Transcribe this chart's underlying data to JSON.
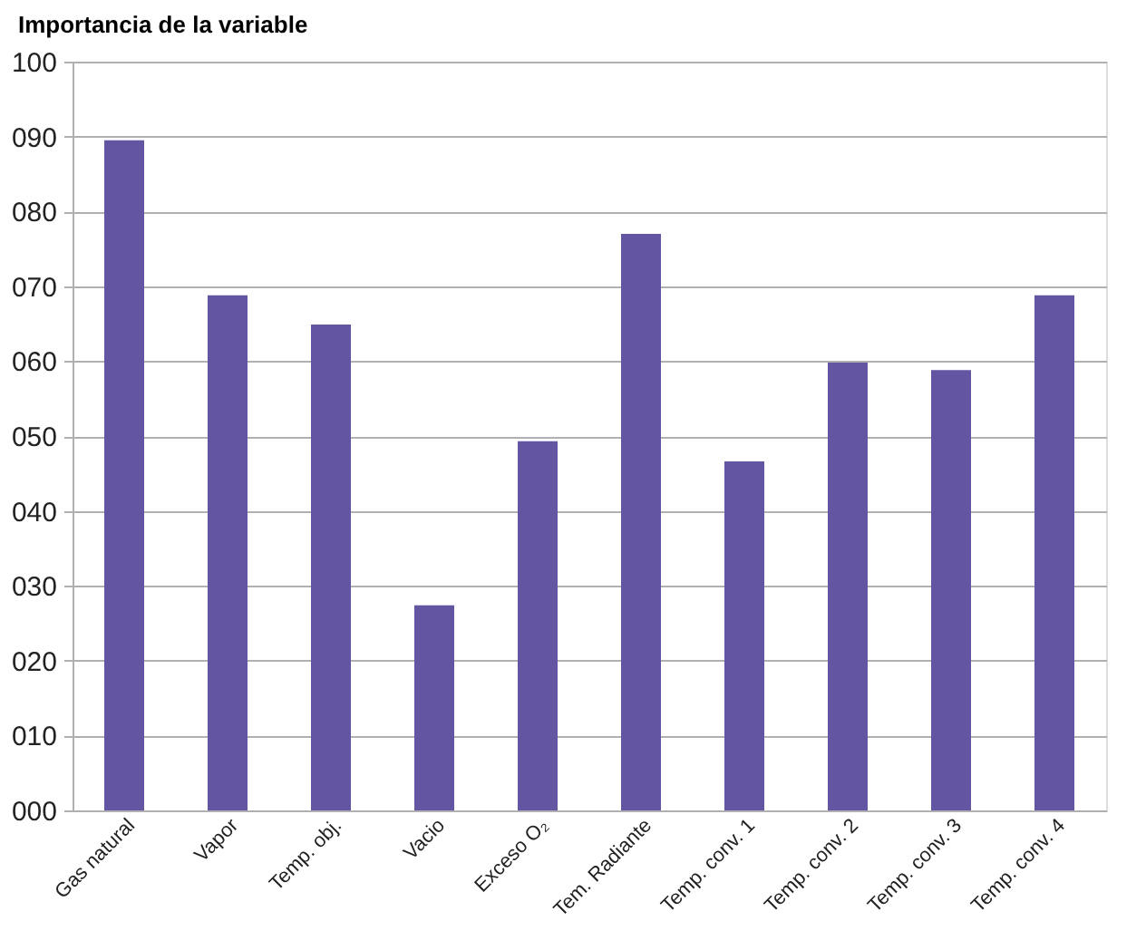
{
  "chart_data": {
    "type": "bar",
    "title": "Importancia de la variable",
    "categories": [
      "Gas natural",
      "Vapor",
      "Temp. obj.",
      "Vacio",
      "Exceso O₂",
      "Tem. Radiante",
      "Temp. conv. 1",
      "Temp. conv. 2",
      "Temp. conv. 3",
      "Temp. conv. 4"
    ],
    "values": [
      89.5,
      68.8,
      64.9,
      27.4,
      49.3,
      77,
      46.6,
      59.8,
      58.8,
      68.8
    ],
    "color": "#6355a2",
    "ylim": [
      0,
      100
    ],
    "yticks": [
      {
        "value": 0,
        "label": "000"
      },
      {
        "value": 10,
        "label": "010"
      },
      {
        "value": 20,
        "label": "020"
      },
      {
        "value": 30,
        "label": "030"
      },
      {
        "value": 40,
        "label": "040"
      },
      {
        "value": 50,
        "label": "050"
      },
      {
        "value": 60,
        "label": "060"
      },
      {
        "value": 70,
        "label": "070"
      },
      {
        "value": 80,
        "label": "080"
      },
      {
        "value": 90,
        "label": "090"
      },
      100
    ],
    "grid": "y"
  }
}
